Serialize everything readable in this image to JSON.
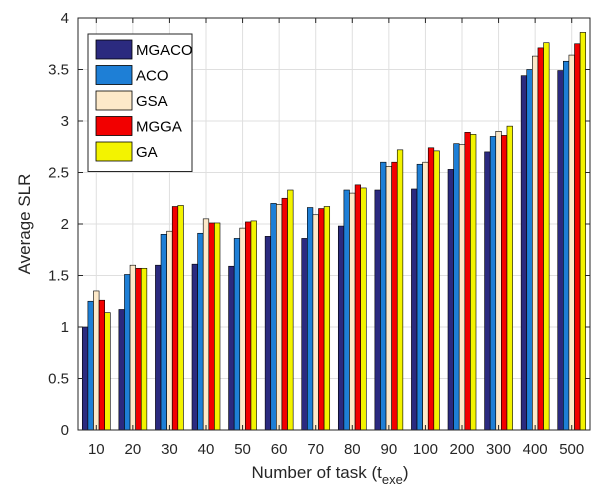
{
  "chart_data": {
    "type": "bar",
    "xlabel": "Number of task (t",
    "xlabel_subscript": "exe",
    "xlabel_suffix": ")",
    "ylabel": "Average SLR",
    "ylim": [
      0,
      4
    ],
    "yticks": [
      "0",
      "0.5",
      "1",
      "1.5",
      "2",
      "2.5",
      "3",
      "3.5",
      "4"
    ],
    "grid": true,
    "legend_position": "top-left",
    "categories": [
      "10",
      "20",
      "30",
      "40",
      "50",
      "60",
      "70",
      "80",
      "90",
      "100",
      "200",
      "300",
      "400",
      "500"
    ],
    "series": [
      {
        "name": "MGACO",
        "color": "#2b2a7f",
        "values": [
          1.0,
          1.17,
          1.6,
          1.61,
          1.59,
          1.88,
          1.86,
          1.98,
          2.33,
          2.34,
          2.53,
          2.7,
          3.44,
          3.49
        ]
      },
      {
        "name": "ACO",
        "color": "#1e7fd6",
        "values": [
          1.25,
          1.51,
          1.9,
          1.91,
          1.86,
          2.2,
          2.16,
          2.33,
          2.6,
          2.58,
          2.78,
          2.85,
          3.5,
          3.58
        ]
      },
      {
        "name": "GSA",
        "color": "#fde9c9",
        "values": [
          1.35,
          1.6,
          1.93,
          2.05,
          1.96,
          2.19,
          2.09,
          2.3,
          2.56,
          2.6,
          2.77,
          2.9,
          3.63,
          3.64
        ]
      },
      {
        "name": "MGGA",
        "color": "#f20000",
        "values": [
          1.26,
          1.57,
          2.17,
          2.01,
          2.02,
          2.25,
          2.15,
          2.38,
          2.6,
          2.74,
          2.89,
          2.86,
          3.71,
          3.75
        ]
      },
      {
        "name": "GA",
        "color": "#f3f300",
        "values": [
          1.14,
          1.57,
          2.18,
          2.01,
          2.03,
          2.33,
          2.17,
          2.35,
          2.72,
          2.71,
          2.87,
          2.95,
          3.76,
          3.86
        ]
      }
    ]
  }
}
